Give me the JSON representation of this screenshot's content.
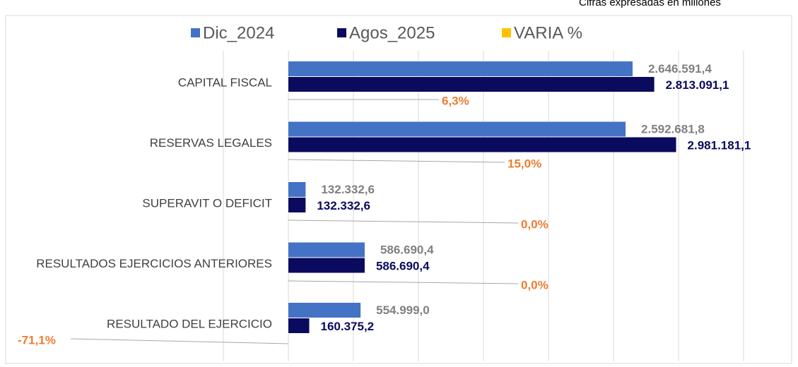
{
  "chart_data": {
    "type": "bar",
    "orientation": "horizontal",
    "subtitle": "Cifras expresadas en millones",
    "categories": [
      "CAPITAL FISCAL",
      "RESERVAS LEGALES",
      "SUPERAVIT O DEFICIT",
      "RESULTADOS EJERCICIOS ANTERIORES",
      "RESULTADO DEL EJERCICIO"
    ],
    "series": [
      {
        "name": "Dic_2024",
        "color": "#4472c4",
        "values": [
          2646591.4,
          2592681.8,
          132332.6,
          586690.4,
          554999.0
        ],
        "value_labels": [
          "2.646.591,4",
          "2.592.681,8",
          "132.332,6",
          "586.690,4",
          "554.999,0"
        ],
        "label_color": "#808080"
      },
      {
        "name": "Agos_2025",
        "color": "#0a0a5e",
        "values": [
          2813091.1,
          2981181.1,
          132332.6,
          586690.4,
          160375.2
        ],
        "value_labels": [
          "2.813.091,1",
          "2.981.181,1",
          "132.332,6",
          "586.690,4",
          "160.375,2"
        ],
        "label_color": "#0a0a5e"
      },
      {
        "name": "VARIA %",
        "color": "#ffc000",
        "values": [
          6.3,
          15.0,
          0.0,
          0.0,
          -71.1
        ],
        "value_labels": [
          "6,3%",
          "15,0%",
          "0,0%",
          "0,0%",
          "-71,1%"
        ],
        "label_color": "#ed7d31"
      }
    ],
    "xlim": [
      -500000,
      3750000
    ],
    "xticks": [
      -500000,
      0,
      500000,
      1000000,
      1500000,
      2000000,
      2500000,
      3000000,
      3500000
    ],
    "grid": true,
    "legend": "top"
  }
}
